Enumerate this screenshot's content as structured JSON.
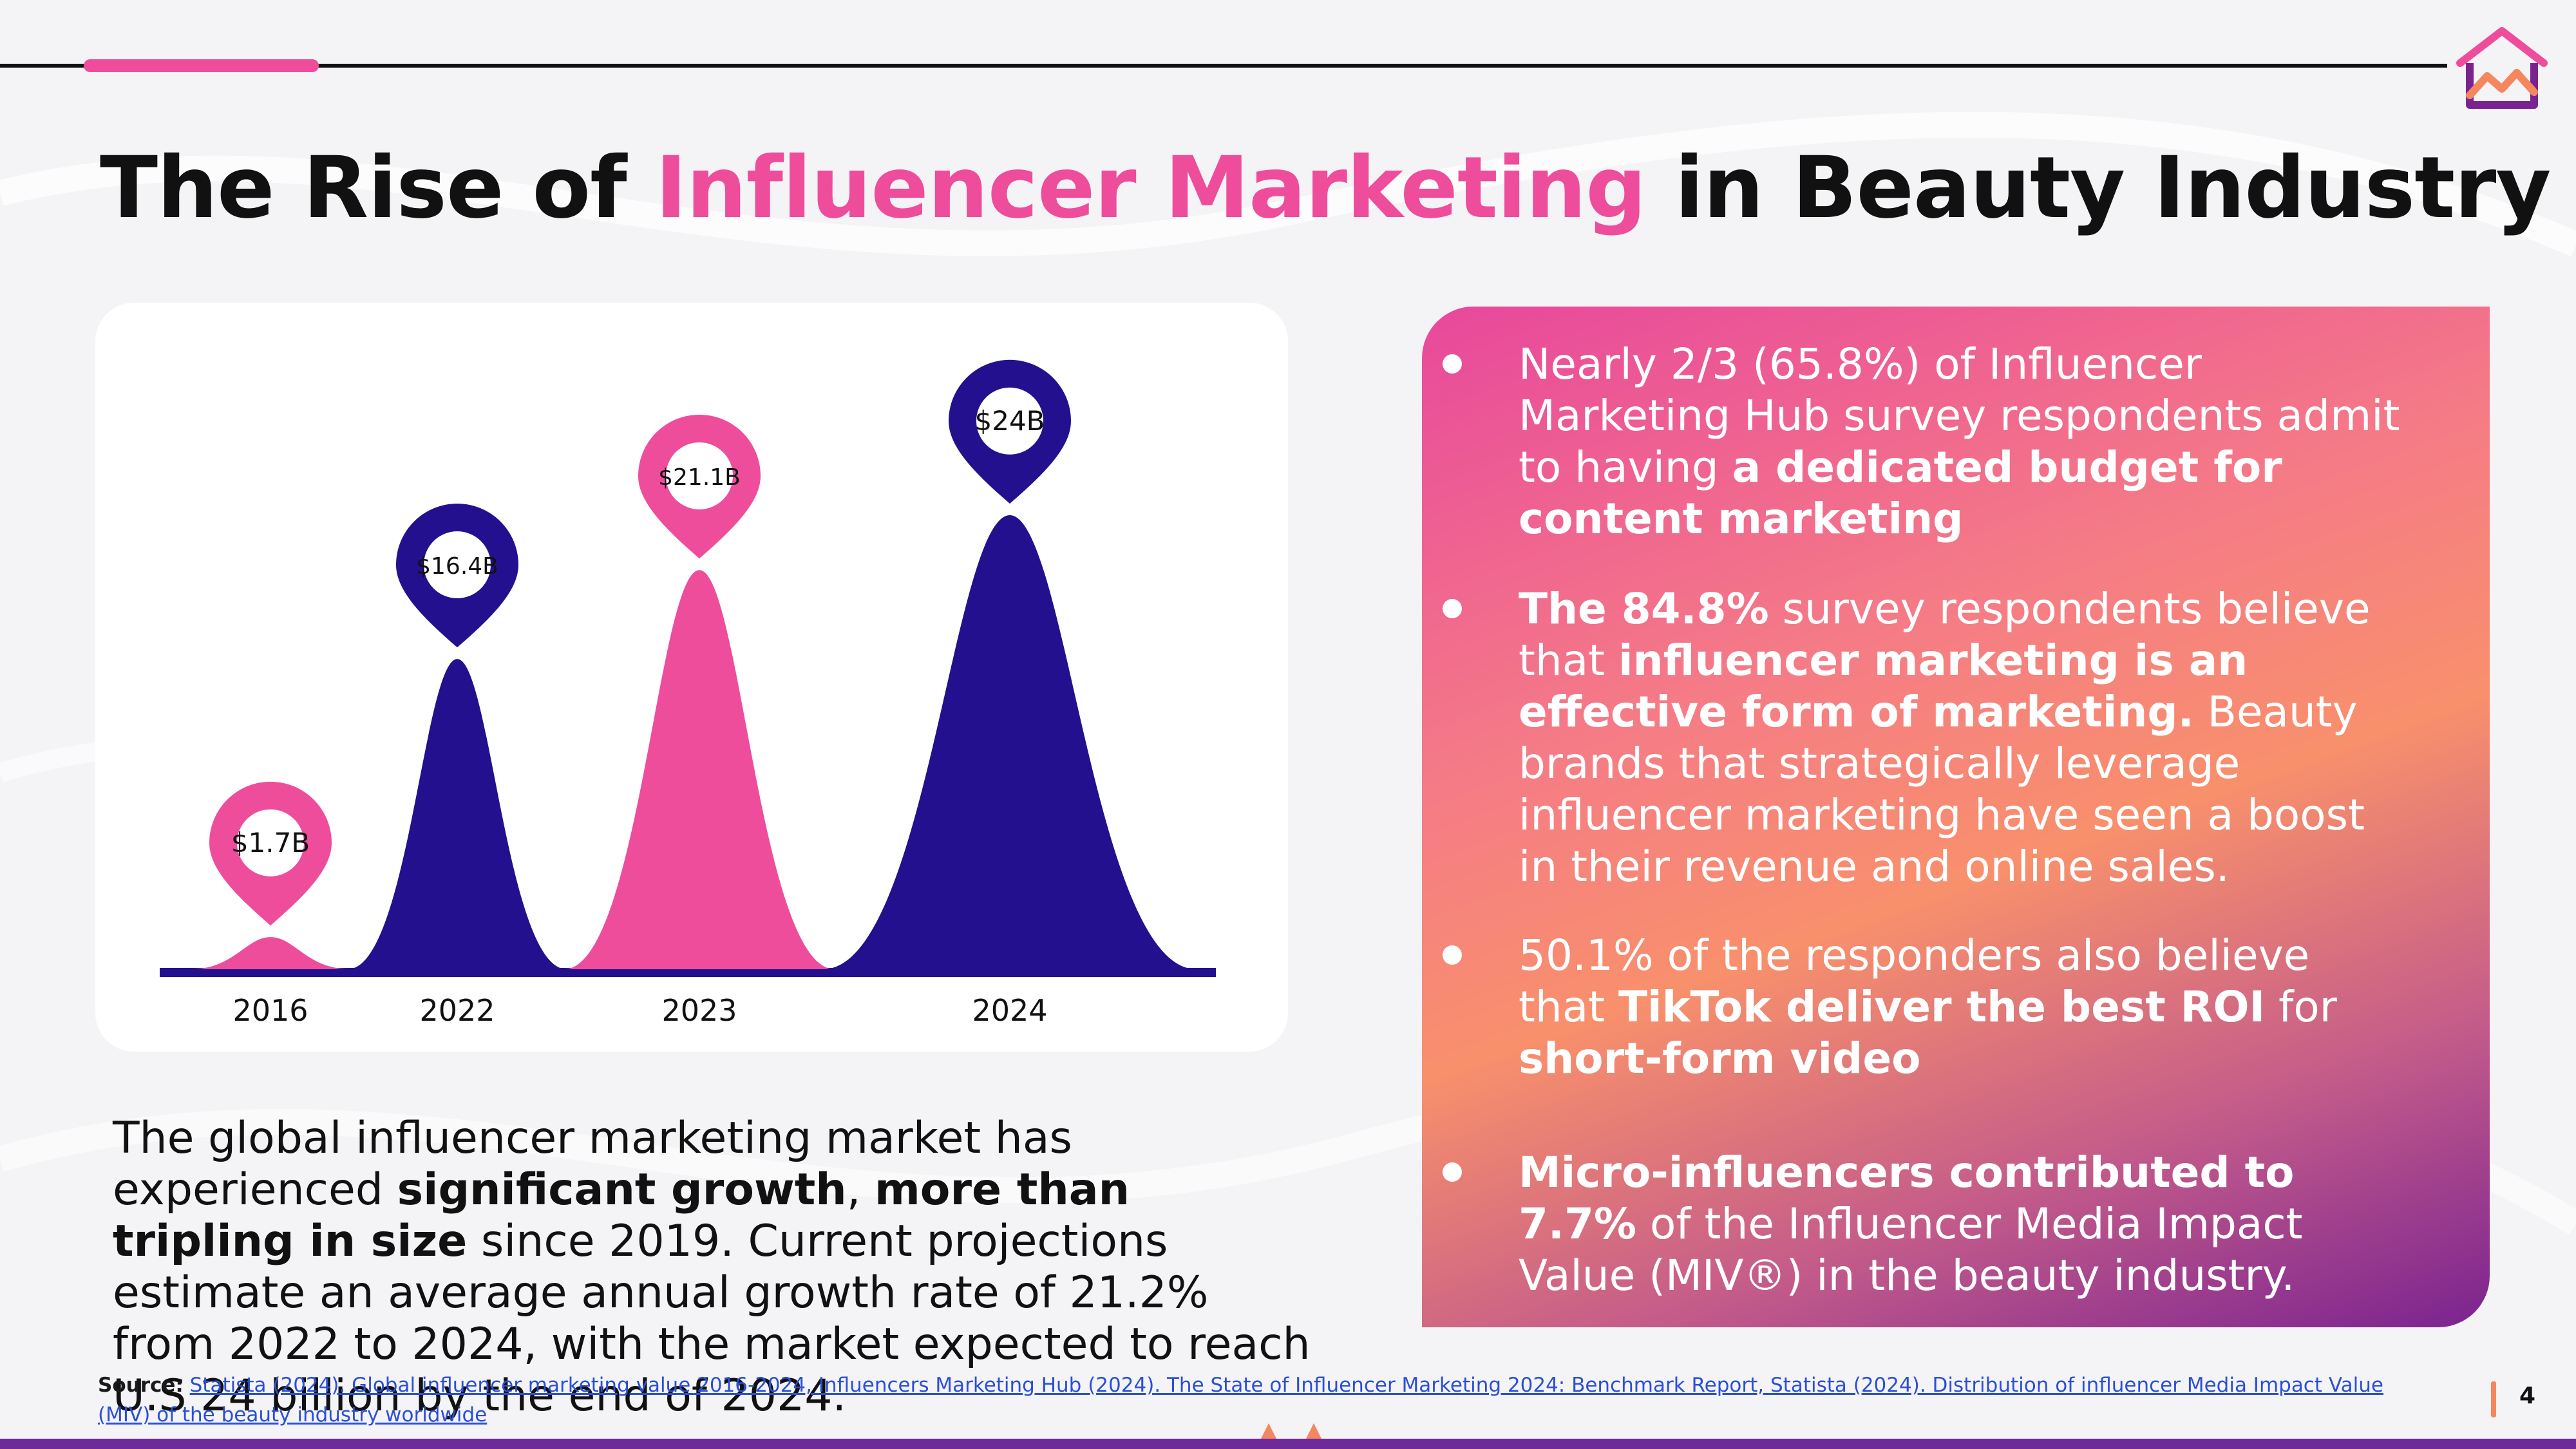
{
  "colors": {
    "pink": "#ee4d9b",
    "navy": "#23108e",
    "text": "#111111",
    "panel_start": "#e8489c",
    "panel_mid": "#f8906c",
    "panel_end": "#7a2390",
    "bottom_bar": "#6e2a9b"
  },
  "logo": {
    "icon": "house-chart-logo-icon"
  },
  "title": {
    "part1": "The Rise of ",
    "highlight": "Influencer Marketing",
    "part2": " in Beauty Industry"
  },
  "chart_data": {
    "type": "area",
    "title": "",
    "xlabel": "",
    "ylabel": "",
    "categories": [
      "2016",
      "2022",
      "2023",
      "2024"
    ],
    "values": [
      1.7,
      16.4,
      21.1,
      24
    ],
    "value_labels": [
      "$1.7B",
      "$16.4B",
      "$21.1B",
      "$24B"
    ],
    "unit": "billion USD",
    "bar_colors": [
      "#ee4d9b",
      "#23108e",
      "#ee4d9b",
      "#23108e"
    ],
    "marker_colors": [
      "#ee4d9b",
      "#23108e",
      "#ee4d9b",
      "#23108e"
    ],
    "marker_shape": "map-pin",
    "grid": false,
    "legend": "none"
  },
  "paragraph": {
    "t1": "The global influencer marketing market has experienced ",
    "b1": "significant growth",
    "t2": ", ",
    "b2": "more than tripling in size",
    "t3": " since 2019. Current  projections estimate an average annual growth rate of 21.2% from 2022 to 2024, with the market expected to reach U.S 24 billion by the end of 2024."
  },
  "bullets": [
    {
      "t1": "Nearly 2/3 (65.8%) of Influencer Marketing Hub survey respondents admit to having ",
      "b1": "a dedicated budget for content marketing"
    },
    {
      "b1": "The 84.8%",
      "t1": " survey respondents believe that ",
      "b2": "influencer marketing is an effective form of marketing.",
      "t2": " Beauty brands that strategically leverage influencer marketing have seen a boost in their revenue and online sales."
    },
    {
      "t1": "50.1% of the responders also believe that ",
      "b1": "TikTok deliver the best ROI",
      "t2": " for ",
      "b2": "short-form video"
    },
    {
      "b1": "Micro-influencers contributed to 7.7%",
      "t1": " of the Influencer Media Impact Value (MIV®) in the beauty industry."
    }
  ],
  "source": {
    "label": "Source:",
    "text": "Statista (2024). Global influencer marketing value 2016-2024, Influencers Marketing Hub (2024). The State of Influencer Marketing 2024: Benchmark Report, Statista (2024). Distribution of influencer Media Impact Value (MIV) of the beauty industry worldwide"
  },
  "page_number": "4"
}
